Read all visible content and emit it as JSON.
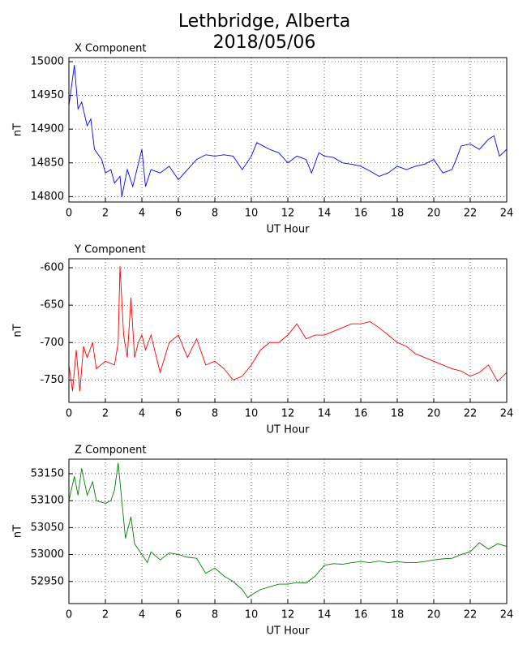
{
  "title": "Lethbridge, Alberta",
  "subtitle": "2018/05/06",
  "chart_data": [
    {
      "type": "line",
      "title": "X Component",
      "xlabel": "UT Hour",
      "ylabel": "nT",
      "xlim": [
        0,
        24
      ],
      "xticks": [
        0,
        2,
        4,
        6,
        8,
        10,
        12,
        14,
        16,
        18,
        20,
        22,
        24
      ],
      "ylim": [
        14792,
        15006
      ],
      "yticks": [
        14800,
        14850,
        14900,
        14950,
        15000
      ],
      "grid": true,
      "x": [
        0,
        0.3,
        0.5,
        0.7,
        1,
        1.2,
        1.4,
        1.8,
        2,
        2.3,
        2.5,
        2.8,
        2.9,
        3.2,
        3.5,
        4,
        4.2,
        4.5,
        5,
        5.5,
        6,
        6.5,
        7,
        7.5,
        8,
        8.5,
        9,
        9.5,
        10,
        10.3,
        11,
        11.5,
        12,
        12.5,
        13,
        13.3,
        13.7,
        14,
        14.5,
        15,
        15.5,
        16,
        16.5,
        17,
        17.5,
        18,
        18.5,
        19,
        19.5,
        20,
        20.5,
        21,
        21.3,
        21.5,
        22,
        22.5,
        23,
        23.3,
        23.6,
        24
      ],
      "series": [
        {
          "color": "#0000ff",
          "values": [
            14935,
            14995,
            14930,
            14940,
            14905,
            14915,
            14870,
            14855,
            14835,
            14840,
            14820,
            14830,
            14800,
            14840,
            14815,
            14870,
            14815,
            14840,
            14835,
            14845,
            14825,
            14840,
            14855,
            14862,
            14860,
            14862,
            14860,
            14840,
            14860,
            14880,
            14870,
            14865,
            14850,
            14860,
            14855,
            14835,
            14865,
            14860,
            14858,
            14850,
            14848,
            14845,
            14838,
            14830,
            14835,
            14845,
            14840,
            14845,
            14848,
            14855,
            14835,
            14840,
            14860,
            14875,
            14878,
            14870,
            14885,
            14890,
            14860,
            14870
          ]
        }
      ]
    },
    {
      "type": "line",
      "title": "Y Component",
      "xlabel": "UT Hour",
      "ylabel": "nT",
      "xlim": [
        0,
        24
      ],
      "xticks": [
        0,
        2,
        4,
        6,
        8,
        10,
        12,
        14,
        16,
        18,
        20,
        22,
        24
      ],
      "ylim": [
        -780,
        -588
      ],
      "yticks": [
        -750,
        -700,
        -650,
        -600
      ],
      "grid": true,
      "x": [
        0,
        0.2,
        0.4,
        0.6,
        0.8,
        1,
        1.3,
        1.5,
        2,
        2.5,
        2.7,
        2.8,
        3,
        3.2,
        3.4,
        3.6,
        3.8,
        4,
        4.2,
        4.5,
        5,
        5.5,
        6,
        6.5,
        7,
        7.5,
        8,
        8.5,
        9,
        9.5,
        10,
        10.5,
        11,
        11.5,
        12,
        12.5,
        13,
        13.5,
        14,
        14.5,
        15,
        15.5,
        16,
        16.5,
        17,
        17.5,
        18,
        18.5,
        19,
        19.5,
        20,
        20.5,
        21,
        21.5,
        22,
        22.5,
        23,
        23.5,
        24
      ],
      "series": [
        {
          "color": "#ff0000",
          "values": [
            -730,
            -765,
            -710,
            -765,
            -705,
            -720,
            -700,
            -735,
            -725,
            -730,
            -700,
            -598,
            -690,
            -720,
            -640,
            -720,
            -700,
            -690,
            -710,
            -690,
            -740,
            -700,
            -690,
            -720,
            -695,
            -730,
            -725,
            -735,
            -750,
            -745,
            -730,
            -710,
            -700,
            -700,
            -690,
            -675,
            -695,
            -690,
            -690,
            -685,
            -680,
            -675,
            -675,
            -672,
            -680,
            -690,
            -700,
            -705,
            -715,
            -720,
            -725,
            -730,
            -735,
            -738,
            -745,
            -740,
            -730,
            -752,
            -740
          ]
        }
      ]
    },
    {
      "type": "line",
      "title": "Z Component",
      "xlabel": "UT Hour",
      "ylabel": "nT",
      "xlim": [
        0,
        24
      ],
      "xticks": [
        0,
        2,
        4,
        6,
        8,
        10,
        12,
        14,
        16,
        18,
        20,
        22,
        24
      ],
      "ylim": [
        52909,
        53177
      ],
      "yticks": [
        52950,
        53000,
        53050,
        53100,
        53150
      ],
      "grid": true,
      "x": [
        0,
        0.3,
        0.5,
        0.7,
        1,
        1.3,
        1.5,
        2,
        2.3,
        2.5,
        2.7,
        2.9,
        3.1,
        3.4,
        3.6,
        4,
        4.3,
        4.5,
        5,
        5.5,
        6,
        6.5,
        7,
        7.5,
        8,
        8.5,
        9,
        9.5,
        9.8,
        10,
        10.5,
        11,
        11.5,
        12,
        12.5,
        13,
        13.5,
        14,
        14.5,
        15,
        15.5,
        16,
        16.5,
        17,
        17.5,
        18,
        18.5,
        19,
        19.5,
        20,
        20.5,
        21,
        21.5,
        22,
        22.5,
        23,
        23.5,
        24
      ],
      "series": [
        {
          "color": "#008000",
          "values": [
            53100,
            53145,
            53110,
            53160,
            53110,
            53135,
            53100,
            53095,
            53100,
            53120,
            53170,
            53100,
            53030,
            53070,
            53020,
            53000,
            52985,
            53005,
            52990,
            53003,
            53000,
            52995,
            52993,
            52965,
            52975,
            52960,
            52950,
            52935,
            52920,
            52925,
            52935,
            52940,
            52945,
            52945,
            52948,
            52947,
            52960,
            52980,
            52983,
            52982,
            52985,
            52987,
            52985,
            52988,
            52985,
            52987,
            52985,
            52985,
            52987,
            52990,
            52992,
            52993,
            53000,
            53005,
            53022,
            53010,
            53020,
            53015
          ]
        }
      ]
    }
  ]
}
